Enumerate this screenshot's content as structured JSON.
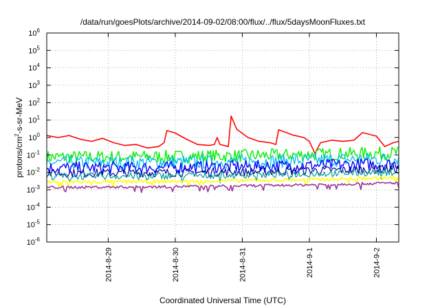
{
  "chart_data": {
    "type": "line",
    "title": "/data/run/goesPlots/archive/2014-09-02/08:00/flux/../flux/5daysMoonFluxes.txt",
    "xlabel": "Coordinated Universal Time (UTC)",
    "ylabel": {
      "pre": "protons/cm",
      "sup": "2",
      "post": "-s-sr-MeV"
    },
    "yscale": "log",
    "ylim_exponents": [
      -6,
      6
    ],
    "y_tick_labels": [
      {
        "base": "10",
        "exp": "-6",
        "e": -6
      },
      {
        "base": "10",
        "exp": "-5",
        "e": -5
      },
      {
        "base": "10",
        "exp": "-4",
        "e": -4
      },
      {
        "base": "10",
        "exp": "-3",
        "e": -3
      },
      {
        "base": "10",
        "exp": "-2",
        "e": -2
      },
      {
        "base": "10",
        "exp": "-1",
        "e": -1
      },
      {
        "base": "10",
        "exp": "0",
        "e": 0
      },
      {
        "base": "10",
        "exp": "1",
        "e": 1
      },
      {
        "base": "10",
        "exp": "2",
        "e": 2
      },
      {
        "base": "10",
        "exp": "3",
        "e": 3
      },
      {
        "base": "10",
        "exp": "4",
        "e": 4
      },
      {
        "base": "10",
        "exp": "5",
        "e": 5
      },
      {
        "base": "10",
        "exp": "6",
        "e": 6
      }
    ],
    "xlim": [
      "2014-08-28T02:00",
      "2014-09-02T08:00"
    ],
    "x_ticks": [
      {
        "label": "2014-8-29",
        "t": "2014-08-29"
      },
      {
        "label": "2014-8-30",
        "t": "2014-08-30"
      },
      {
        "label": "2014-8-31",
        "t": "2014-08-31"
      },
      {
        "label": "2014-9-1",
        "t": "2014-09-01"
      },
      {
        "label": "2014-9-2",
        "t": "2014-09-02"
      }
    ],
    "grid": true,
    "series": [
      {
        "color": "#ff0000",
        "base": 0.25,
        "amp": 0.35,
        "width": 1.6,
        "points": [
          [
            "2014-08-28T02:00",
            1.3
          ],
          [
            "2014-08-28T06:00",
            1.0
          ],
          [
            "2014-08-28T10:00",
            1.3
          ],
          [
            "2014-08-28T14:00",
            0.8
          ],
          [
            "2014-08-28T18:00",
            0.6
          ],
          [
            "2014-08-28T22:00",
            0.9
          ],
          [
            "2014-08-29T02:00",
            0.5
          ],
          [
            "2014-08-29T06:00",
            0.35
          ],
          [
            "2014-08-29T10:00",
            0.4
          ],
          [
            "2014-08-29T14:00",
            0.25
          ],
          [
            "2014-08-29T18:00",
            0.3
          ],
          [
            "2014-08-29T20:00",
            0.5
          ],
          [
            "2014-08-29T21:00",
            2.5
          ],
          [
            "2014-08-30T00:00",
            1.8
          ],
          [
            "2014-08-30T04:00",
            0.8
          ],
          [
            "2014-08-30T08:00",
            0.4
          ],
          [
            "2014-08-30T12:00",
            0.35
          ],
          [
            "2014-08-30T14:00",
            0.4
          ],
          [
            "2014-08-30T15:00",
            1.0
          ],
          [
            "2014-08-30T16:00",
            0.4
          ],
          [
            "2014-08-30T19:00",
            0.3
          ],
          [
            "2014-08-30T20:00",
            17
          ],
          [
            "2014-08-30T22:00",
            3.0
          ],
          [
            "2014-08-31T02:00",
            1.0
          ],
          [
            "2014-08-31T06:00",
            0.6
          ],
          [
            "2014-08-31T10:00",
            0.5
          ],
          [
            "2014-08-31T12:00",
            0.4
          ],
          [
            "2014-08-31T13:00",
            2.8
          ],
          [
            "2014-08-31T18:00",
            1.4
          ],
          [
            "2014-08-31T22:00",
            1.0
          ],
          [
            "2014-09-01T00:00",
            0.6
          ],
          [
            "2014-09-01T02:00",
            0.12
          ],
          [
            "2014-09-01T04:00",
            0.5
          ],
          [
            "2014-09-01T08:00",
            0.7
          ],
          [
            "2014-09-01T12:00",
            0.6
          ],
          [
            "2014-09-01T16:00",
            0.7
          ],
          [
            "2014-09-01T19:00",
            1.9
          ],
          [
            "2014-09-02T00:00",
            1.2
          ],
          [
            "2014-09-02T03:00",
            0.3
          ],
          [
            "2014-09-02T06:00",
            0.5
          ],
          [
            "2014-09-02T08:00",
            0.6
          ]
        ]
      },
      {
        "color": "#00ee00",
        "base": 0.075,
        "amp": 0.75,
        "width": 1.4
      },
      {
        "color": "#00bbee",
        "base": 0.035,
        "amp": 0.8,
        "width": 1.3
      },
      {
        "color": "#0000ff",
        "base": 0.018,
        "amp": 0.7,
        "width": 1.4
      },
      {
        "color": "#000099",
        "base": 0.009,
        "amp": 0.5,
        "width": 1.2
      },
      {
        "color": "#009999",
        "base": 0.006,
        "amp": 0.4,
        "width": 1.2
      },
      {
        "color": "#ffff00",
        "base": 0.0028,
        "amp": 0.2,
        "width": 1.6
      },
      {
        "color": "#993399",
        "base": 0.0014,
        "amp": 0.15,
        "width": 1.6
      }
    ]
  }
}
